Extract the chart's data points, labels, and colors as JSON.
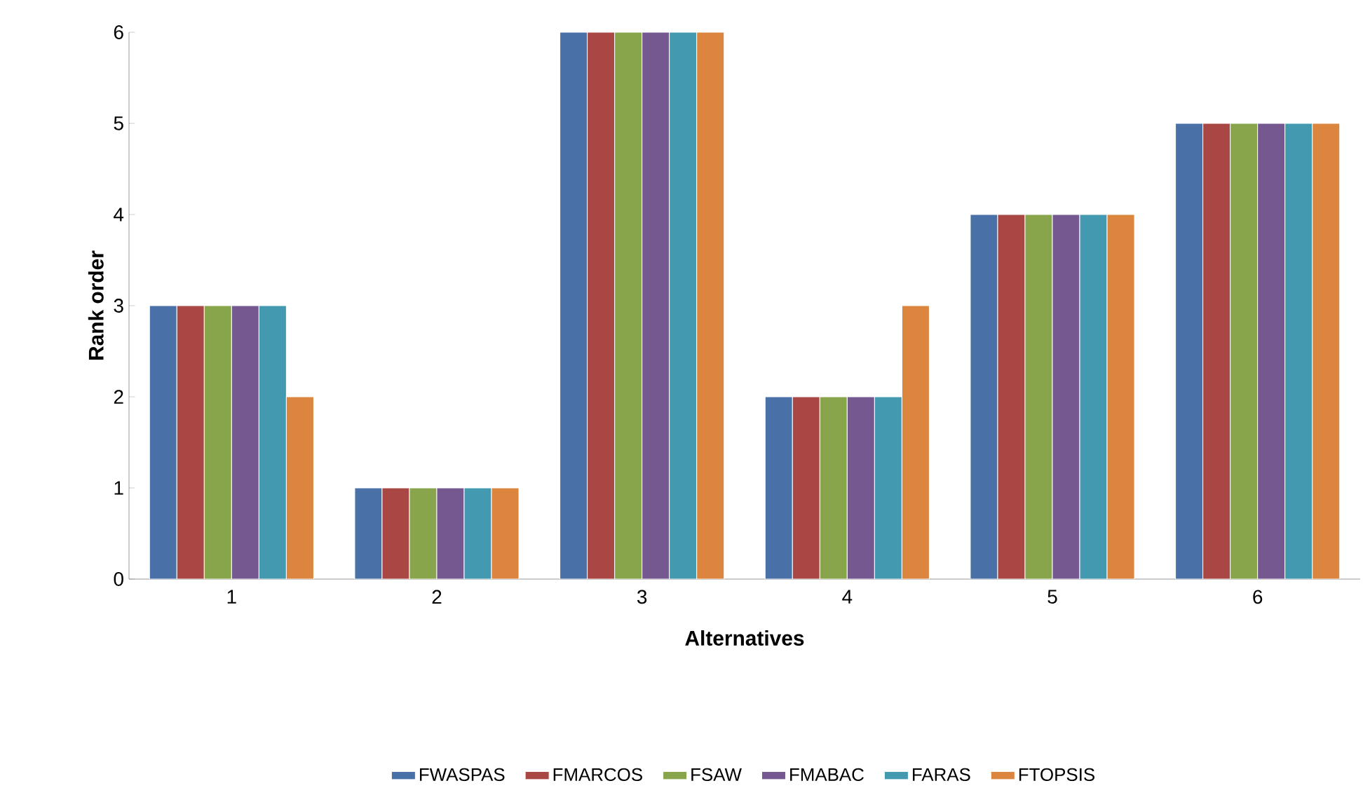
{
  "chart_data": {
    "type": "bar",
    "xlabel": "Alternatives",
    "ylabel": "Rank order",
    "categories": [
      "1",
      "2",
      "3",
      "4",
      "5",
      "6"
    ],
    "series": [
      {
        "name": "FWASPAS",
        "color": "#4a70a8",
        "values": [
          3,
          1,
          6,
          2,
          4,
          5
        ]
      },
      {
        "name": "FMARCOS",
        "color": "#a84744",
        "values": [
          3,
          1,
          6,
          2,
          4,
          5
        ]
      },
      {
        "name": "FSAW",
        "color": "#88a54b",
        "values": [
          3,
          1,
          6,
          2,
          4,
          5
        ]
      },
      {
        "name": "FMABAC",
        "color": "#74588f",
        "values": [
          3,
          1,
          6,
          2,
          4,
          5
        ]
      },
      {
        "name": "FARAS",
        "color": "#4399b0",
        "values": [
          3,
          1,
          6,
          2,
          4,
          5
        ]
      },
      {
        "name": "FTOPSIS",
        "color": "#db853e",
        "values": [
          2,
          1,
          6,
          3,
          4,
          5
        ]
      }
    ],
    "ylim": [
      0,
      6
    ],
    "yticks": [
      0,
      1,
      2,
      3,
      4,
      5,
      6
    ],
    "grid": false,
    "legend": "bottom"
  }
}
